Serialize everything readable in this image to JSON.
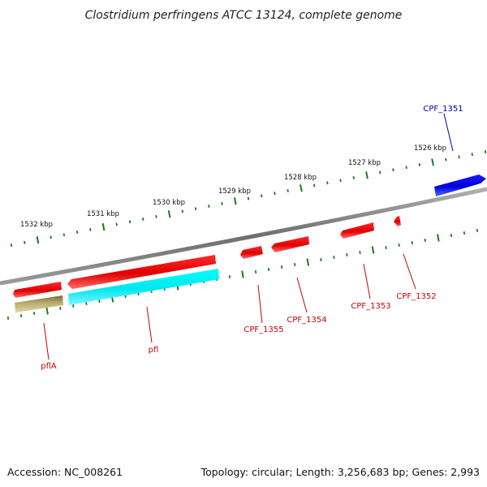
{
  "title": "Clostridium perfringens ATCC 13124, complete genome",
  "footer": {
    "accession": "Accession: NC_008261",
    "summary": "Topology: circular; Length: 3,256,683 bp; Genes: 2,993"
  },
  "colors": {
    "backbone": "#888888",
    "ticks": "#1e7a1e",
    "forward_gene": "#ee0000",
    "blue_gene": "#0000dd",
    "cyan_gene": "#00eeee",
    "olive_gene": "#b8ae6c",
    "label_red": "#cc0000",
    "label_blue": "#0000aa"
  },
  "scale": {
    "labels": [
      "1532 kbp",
      "1531 kbp",
      "1530 kbp",
      "1529 kbp",
      "1528 kbp",
      "1527 kbp",
      "1526 kbp"
    ]
  },
  "genes": [
    {
      "name": "pflA",
      "color": "olive"
    },
    {
      "name": "pfl",
      "color": "cyan"
    },
    {
      "name": "CPF_1355",
      "color": "red"
    },
    {
      "name": "CPF_1354",
      "color": "red"
    },
    {
      "name": "CPF_1353",
      "color": "red"
    },
    {
      "name": "CPF_1352",
      "color": "red"
    },
    {
      "name": "CPF_1351",
      "color": "blue"
    }
  ]
}
